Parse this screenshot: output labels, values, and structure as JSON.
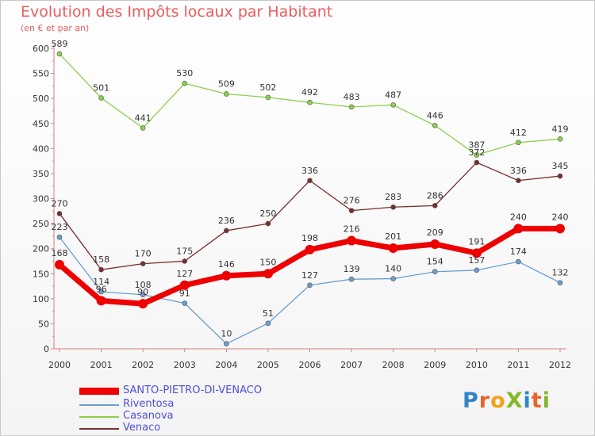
{
  "chart_data": {
    "type": "line",
    "title": "Evolution des Impôts locaux par Habitant",
    "subtitle": "(en € et par an)",
    "x": [
      "2000",
      "2001",
      "2002",
      "2003",
      "2004",
      "2005",
      "2006",
      "2007",
      "2008",
      "2009",
      "2010",
      "2011",
      "2012"
    ],
    "ylim": [
      0,
      600
    ],
    "yticks": [
      "0",
      "50",
      "100",
      "150",
      "200",
      "250",
      "300",
      "350",
      "400",
      "450",
      "500",
      "550",
      "600"
    ],
    "grid": false,
    "legend_position": "bottom-left",
    "series": [
      {
        "name": "Riventosa",
        "color": "#6a9fd0",
        "values": [
          223,
          114,
          108,
          91,
          10,
          51,
          127,
          139,
          140,
          154,
          157,
          174,
          132
        ],
        "labels": [
          "223",
          "114",
          "108",
          "91",
          "10",
          "51",
          "127",
          "139",
          "140",
          "154",
          "157",
          "174",
          "132"
        ]
      },
      {
        "name": "Casanova",
        "color": "#8cd04a",
        "values": [
          589,
          501,
          441,
          530,
          509,
          502,
          492,
          483,
          487,
          446,
          387,
          412,
          419
        ],
        "labels": [
          "589",
          "501",
          "441",
          "530",
          "509",
          "502",
          "492",
          "483",
          "487",
          "446",
          "387",
          "412",
          "419"
        ]
      },
      {
        "name": "Venaco",
        "color": "#7a2e2e",
        "values": [
          270,
          158,
          170,
          175,
          236,
          250,
          336,
          276,
          283,
          286,
          372,
          336,
          345
        ],
        "labels": [
          "270",
          "158",
          "170",
          "175",
          "236",
          "250",
          "336",
          "276",
          "283",
          "286",
          "372",
          "336",
          "345"
        ]
      },
      {
        "name": "SANTO-PIETRO-DI-VENACO",
        "color": "#ee0000",
        "values": [
          168,
          96,
          90,
          127,
          146,
          150,
          198,
          216,
          201,
          209,
          191,
          240,
          240
        ],
        "labels": [
          "168",
          "96",
          "90",
          "127",
          "146",
          "150",
          "198",
          "216",
          "201",
          "209",
          "191",
          "240",
          "240"
        ]
      }
    ]
  },
  "legend": [
    {
      "label": "SANTO-PIETRO-DI-VENACO",
      "color": "#ee0000"
    },
    {
      "label": "Riventosa",
      "color": "#6a9fd0"
    },
    {
      "label": "Casanova",
      "color": "#8cd04a"
    },
    {
      "label": "Venaco",
      "color": "#7a2e2e"
    }
  ],
  "logo": {
    "text": "ProXiti"
  }
}
